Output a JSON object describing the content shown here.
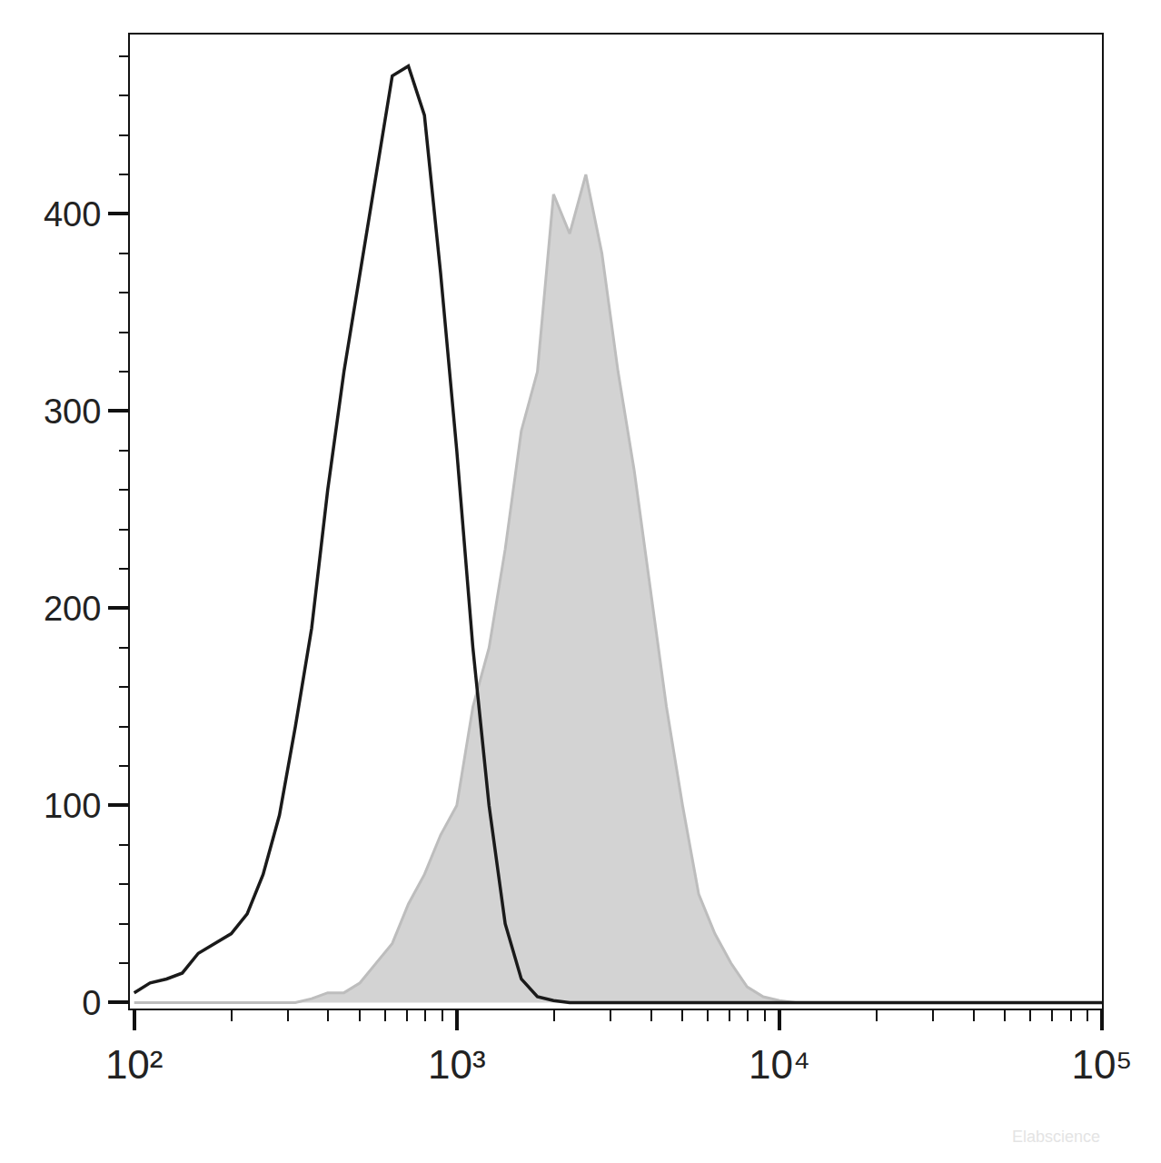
{
  "chart_data": {
    "type": "line",
    "log": "x",
    "x": [
      100,
      112,
      126,
      141,
      158,
      178,
      200,
      224,
      251,
      282,
      316,
      355,
      398,
      447,
      501,
      562,
      631,
      708,
      794,
      891,
      1000,
      1122,
      1259,
      1413,
      1585,
      1778,
      1995,
      2239,
      2512,
      2818,
      3162,
      3548,
      3981,
      4467,
      5012,
      5623,
      6310,
      7079,
      7943,
      8913,
      10000,
      11220,
      12589,
      14125,
      15849,
      17783,
      19953,
      22387,
      25119,
      28184,
      31623,
      35481,
      39811,
      44668,
      50119,
      56234,
      63096,
      70795,
      79433,
      89125,
      100000
    ],
    "series": [
      {
        "type": "area",
        "color": "#d3d3d3",
        "values": [
          0,
          0,
          0,
          0,
          0,
          0,
          0,
          0,
          0,
          0,
          0,
          2,
          5,
          5,
          10,
          20,
          30,
          50,
          65,
          85,
          100,
          150,
          180,
          230,
          290,
          320,
          410,
          390,
          420,
          380,
          320,
          270,
          210,
          150,
          100,
          55,
          35,
          20,
          8,
          3,
          1,
          0,
          0,
          0,
          0,
          0,
          0,
          0,
          0,
          0,
          0,
          0,
          0,
          0,
          0,
          0,
          0,
          0,
          0,
          0,
          0
        ]
      },
      {
        "type": "line",
        "color": "#1a1a1a",
        "values": [
          5,
          10,
          12,
          15,
          25,
          30,
          35,
          45,
          65,
          95,
          140,
          190,
          260,
          320,
          370,
          420,
          470,
          475,
          450,
          370,
          280,
          180,
          100,
          40,
          12,
          3,
          1,
          0,
          0,
          0,
          0,
          0,
          0,
          0,
          0,
          0,
          0,
          0,
          0,
          0,
          0,
          0,
          0,
          0,
          0,
          0,
          0,
          0,
          0,
          0,
          0,
          0,
          0,
          0,
          0,
          0,
          0,
          0,
          0,
          0,
          0
        ]
      }
    ],
    "xlim": [
      97,
      100000
    ],
    "xticks": [
      {
        "value": 100,
        "label": "10²"
      },
      {
        "value": 1000,
        "label": "10³"
      },
      {
        "value": 10000,
        "label": "10⁴"
      },
      {
        "value": 100000,
        "label": "10⁵"
      }
    ],
    "ylim": [
      -3,
      491
    ],
    "yticks": [
      0,
      100,
      200,
      300,
      400
    ],
    "grid": false,
    "annotations": [
      {
        "text": "Elabscience"
      }
    ]
  }
}
